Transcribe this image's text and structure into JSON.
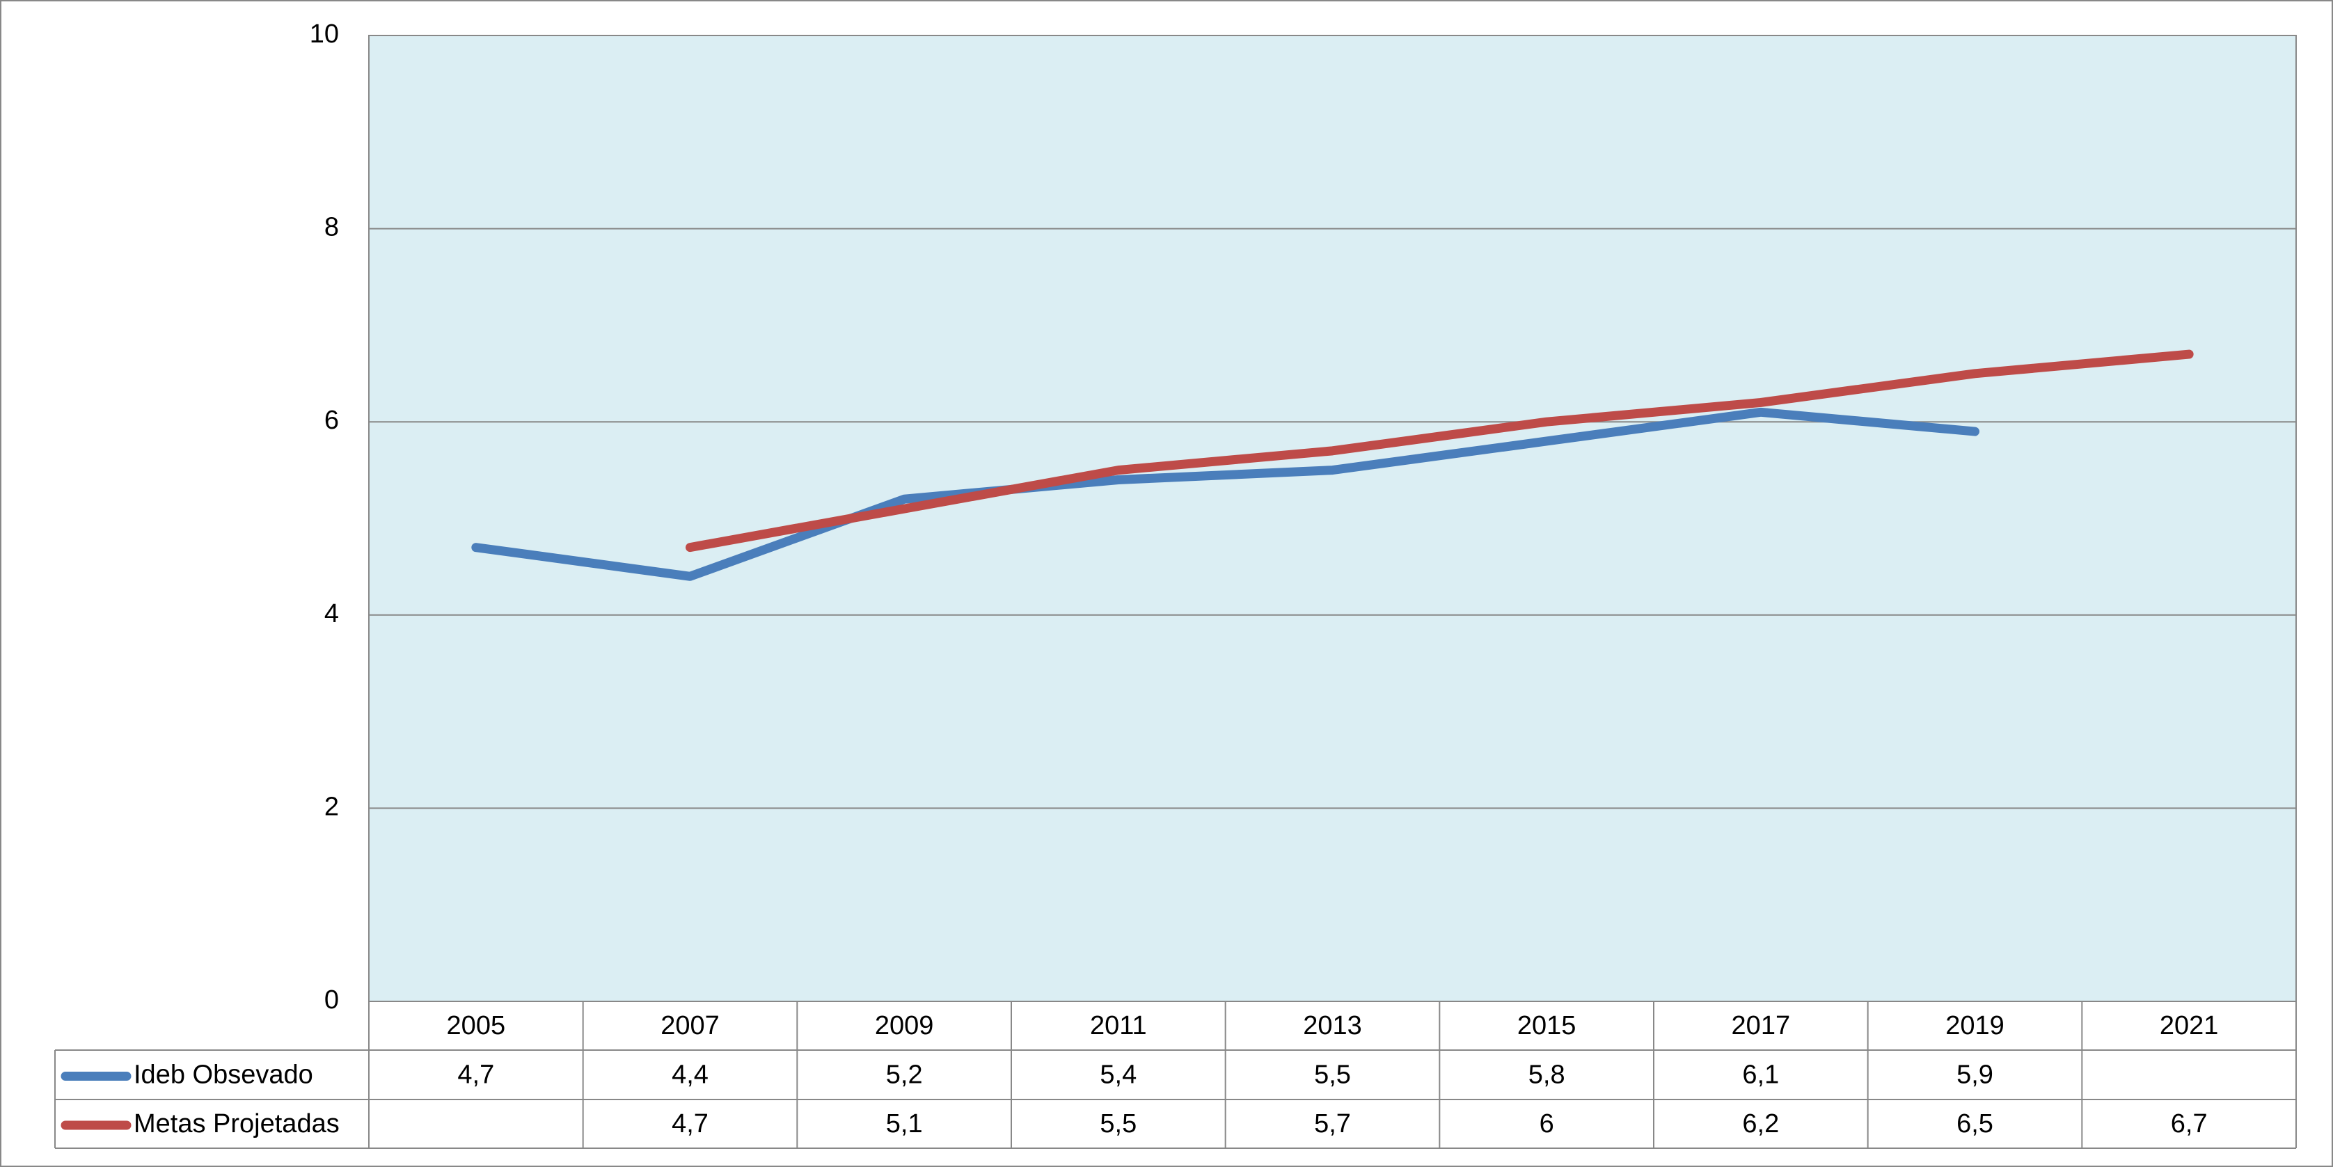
{
  "chart_data": {
    "type": "line",
    "categories": [
      "2005",
      "2007",
      "2009",
      "2011",
      "2013",
      "2015",
      "2017",
      "2019",
      "2021"
    ],
    "series": [
      {
        "name": "Ideb Obsevado",
        "color": "#4a7ebb",
        "values": [
          4.7,
          4.4,
          5.2,
          5.4,
          5.5,
          5.8,
          6.1,
          5.9,
          null
        ],
        "value_labels": [
          "4,7",
          "4,4",
          "5,2",
          "5,4",
          "5,5",
          "5,8",
          "6,1",
          "5,9",
          null
        ]
      },
      {
        "name": "Metas Projetadas",
        "color": "#be4b48",
        "values": [
          null,
          4.7,
          5.1,
          5.5,
          5.7,
          6,
          6.2,
          6.5,
          6.7
        ],
        "value_labels": [
          null,
          "4,7",
          "5,1",
          "5,5",
          "5,7",
          "6",
          "6,2",
          "6,5",
          "6,7"
        ]
      }
    ],
    "ylim": [
      0,
      10
    ],
    "yticks": [
      0,
      2,
      4,
      6,
      8,
      10
    ],
    "grid": true,
    "plot_background": "#dbeef3"
  }
}
